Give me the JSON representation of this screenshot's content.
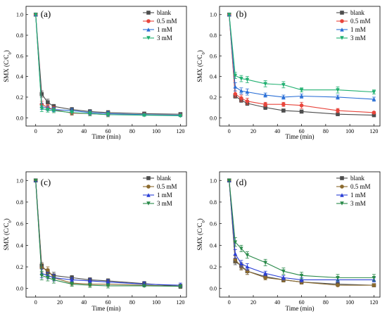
{
  "figure": {
    "colors": {
      "blank": "#4d4d4d",
      "0.5 mM": "#e8453c",
      "1 mM": "#2a6fd6",
      "3 mM": "#20b070"
    },
    "markers": {
      "blank": "square",
      "0.5 mM": "circle",
      "1 mM": "triangle-up",
      "3 mM": "triangle-down"
    },
    "colors_panel_cd": {
      "blank": "#4d4d4d",
      "0.5 mM": "#8b6a2e",
      "1 mM": "#2a3fd6",
      "3 mM": "#2a8a4a"
    }
  },
  "chart_data": [
    {
      "type": "line",
      "panel_label": "(a)",
      "xlabel": "Time (min)",
      "ylabel": "SMX (C/C",
      "ylabel_sub": "0",
      "ylabel_close": ")",
      "xlim": [
        -8,
        125
      ],
      "ylim": [
        -0.08,
        1.08
      ],
      "xticks": [
        0,
        20,
        40,
        60,
        80,
        100,
        120
      ],
      "yticks": [
        0.0,
        0.2,
        0.4,
        0.6,
        0.8,
        1.0
      ],
      "ytick_labels": [
        "0.0",
        "0.2",
        "0.4",
        "0.6",
        "0.8",
        "1.0"
      ],
      "legend_position": "top-right",
      "x": [
        0,
        5,
        10,
        15,
        30,
        45,
        60,
        90,
        120
      ],
      "series": [
        {
          "name": "blank",
          "values": [
            1.0,
            0.23,
            0.15,
            0.11,
            0.08,
            0.06,
            0.05,
            0.04,
            0.035
          ],
          "errors": [
            0,
            0.03,
            0.03,
            0.02,
            0.02,
            0.02,
            0.02,
            0.015,
            0.01
          ]
        },
        {
          "name": "0.5 mM",
          "values": [
            1.0,
            0.13,
            0.1,
            0.08,
            0.045,
            0.04,
            0.03,
            0.03,
            0.025
          ],
          "errors": [
            0,
            0.03,
            0.03,
            0.03,
            0.02,
            0.02,
            0.02,
            0.01,
            0.01
          ]
        },
        {
          "name": "1 mM",
          "values": [
            1.0,
            0.11,
            0.09,
            0.08,
            0.07,
            0.05,
            0.04,
            0.03,
            0.025
          ],
          "errors": [
            0,
            0.03,
            0.02,
            0.02,
            0.02,
            0.02,
            0.02,
            0.01,
            0.01
          ]
        },
        {
          "name": "3 mM",
          "values": [
            1.0,
            0.09,
            0.075,
            0.07,
            0.05,
            0.04,
            0.03,
            0.025,
            0.02
          ],
          "errors": [
            0,
            0.03,
            0.02,
            0.02,
            0.02,
            0.02,
            0.02,
            0.01,
            0.01
          ]
        }
      ]
    },
    {
      "type": "line",
      "panel_label": "(b)",
      "xlabel": "Time (min)",
      "ylabel": "SMX (C/C",
      "ylabel_sub": "0",
      "ylabel_close": ")",
      "xlim": [
        -8,
        125
      ],
      "ylim": [
        -0.08,
        1.08
      ],
      "xticks": [
        0,
        20,
        40,
        60,
        80,
        100,
        120
      ],
      "yticks": [
        0.0,
        0.2,
        0.4,
        0.6,
        0.8,
        1.0
      ],
      "ytick_labels": [
        "0.0",
        "0.2",
        "0.4",
        "0.6",
        "0.8",
        "1.0"
      ],
      "legend_position": "top-right",
      "x": [
        0,
        5,
        10,
        15,
        30,
        45,
        60,
        90,
        120
      ],
      "series": [
        {
          "name": "blank",
          "values": [
            1.0,
            0.21,
            0.17,
            0.14,
            0.1,
            0.07,
            0.06,
            0.035,
            0.025
          ],
          "errors": [
            0,
            0.02,
            0.02,
            0.02,
            0.02,
            0.015,
            0.015,
            0.01,
            0.01
          ]
        },
        {
          "name": "0.5 mM",
          "values": [
            1.0,
            0.23,
            0.19,
            0.16,
            0.13,
            0.13,
            0.12,
            0.07,
            0.05
          ],
          "errors": [
            0,
            0.03,
            0.03,
            0.03,
            0.02,
            0.02,
            0.03,
            0.02,
            0.01
          ]
        },
        {
          "name": "1 mM",
          "values": [
            1.0,
            0.3,
            0.26,
            0.25,
            0.22,
            0.2,
            0.21,
            0.2,
            0.18
          ],
          "errors": [
            0,
            0.04,
            0.03,
            0.03,
            0.02,
            0.02,
            0.02,
            0.02,
            0.02
          ]
        },
        {
          "name": "3 mM",
          "values": [
            1.0,
            0.41,
            0.38,
            0.37,
            0.33,
            0.32,
            0.27,
            0.27,
            0.25
          ],
          "errors": [
            0,
            0.03,
            0.03,
            0.03,
            0.03,
            0.03,
            0.02,
            0.03,
            0.02
          ]
        }
      ]
    },
    {
      "type": "line",
      "panel_label": "(c)",
      "xlabel": "Time (min)",
      "ylabel": "SMX (C/C",
      "ylabel_sub": "0",
      "ylabel_close": ")",
      "xlim": [
        -8,
        125
      ],
      "ylim": [
        -0.08,
        1.08
      ],
      "xticks": [
        0,
        20,
        40,
        60,
        80,
        100,
        120
      ],
      "yticks": [
        0.0,
        0.2,
        0.4,
        0.6,
        0.8,
        1.0
      ],
      "ytick_labels": [
        "0.0",
        "0.2",
        "0.4",
        "0.6",
        "0.8",
        "1.0"
      ],
      "legend_position": "top-right",
      "x": [
        0,
        5,
        10,
        15,
        30,
        45,
        60,
        90,
        120
      ],
      "series": [
        {
          "name": "blank",
          "values": [
            1.0,
            0.21,
            0.15,
            0.12,
            0.1,
            0.08,
            0.07,
            0.045,
            0.02
          ],
          "errors": [
            0,
            0.03,
            0.03,
            0.03,
            0.02,
            0.02,
            0.02,
            0.02,
            0.02
          ]
        },
        {
          "name": "0.5 mM",
          "values": [
            1.0,
            0.19,
            0.17,
            0.1,
            0.05,
            0.04,
            0.04,
            0.03,
            0.02
          ],
          "errors": [
            0,
            0.04,
            0.03,
            0.03,
            0.02,
            0.02,
            0.02,
            0.01,
            0.01
          ]
        },
        {
          "name": "1 mM",
          "values": [
            1.0,
            0.14,
            0.12,
            0.1,
            0.08,
            0.07,
            0.06,
            0.04,
            0.03
          ],
          "errors": [
            0,
            0.04,
            0.03,
            0.03,
            0.02,
            0.02,
            0.02,
            0.02,
            0.02
          ]
        },
        {
          "name": "3 mM",
          "values": [
            1.0,
            0.12,
            0.1,
            0.08,
            0.04,
            0.03,
            0.025,
            0.025,
            0.02
          ],
          "errors": [
            0,
            0.04,
            0.03,
            0.03,
            0.02,
            0.02,
            0.02,
            0.01,
            0.01
          ]
        }
      ]
    },
    {
      "type": "line",
      "panel_label": "(d)",
      "xlabel": "Time (min)",
      "ylabel": "SMX (C/C",
      "ylabel_sub": "0",
      "ylabel_close": ")",
      "xlim": [
        -8,
        125
      ],
      "ylim": [
        -0.08,
        1.08
      ],
      "xticks": [
        0,
        20,
        40,
        60,
        80,
        100,
        120
      ],
      "yticks": [
        0.0,
        0.2,
        0.4,
        0.6,
        0.8,
        1.0
      ],
      "ytick_labels": [
        "0.0",
        "0.2",
        "0.4",
        "0.6",
        "0.8",
        "1.0"
      ],
      "legend_position": "top-right",
      "x": [
        0,
        5,
        10,
        15,
        30,
        45,
        60,
        90,
        120
      ],
      "series": [
        {
          "name": "blank",
          "values": [
            1.0,
            0.25,
            0.21,
            0.16,
            0.11,
            0.08,
            0.06,
            0.04,
            0.03
          ],
          "errors": [
            0,
            0.03,
            0.03,
            0.03,
            0.02,
            0.02,
            0.02,
            0.01,
            0.01
          ]
        },
        {
          "name": "0.5 mM",
          "values": [
            1.0,
            0.27,
            0.2,
            0.16,
            0.1,
            0.08,
            0.06,
            0.03,
            0.03
          ],
          "errors": [
            0,
            0.03,
            0.03,
            0.03,
            0.02,
            0.02,
            0.02,
            0.01,
            0.01
          ]
        },
        {
          "name": "1 mM",
          "values": [
            1.0,
            0.32,
            0.23,
            0.2,
            0.14,
            0.1,
            0.08,
            0.08,
            0.08
          ],
          "errors": [
            0,
            0.04,
            0.03,
            0.03,
            0.02,
            0.02,
            0.02,
            0.02,
            0.02
          ]
        },
        {
          "name": "3 mM",
          "values": [
            1.0,
            0.43,
            0.37,
            0.31,
            0.24,
            0.16,
            0.12,
            0.1,
            0.1
          ],
          "errors": [
            0,
            0.04,
            0.03,
            0.03,
            0.03,
            0.03,
            0.03,
            0.03,
            0.03
          ]
        }
      ]
    }
  ]
}
